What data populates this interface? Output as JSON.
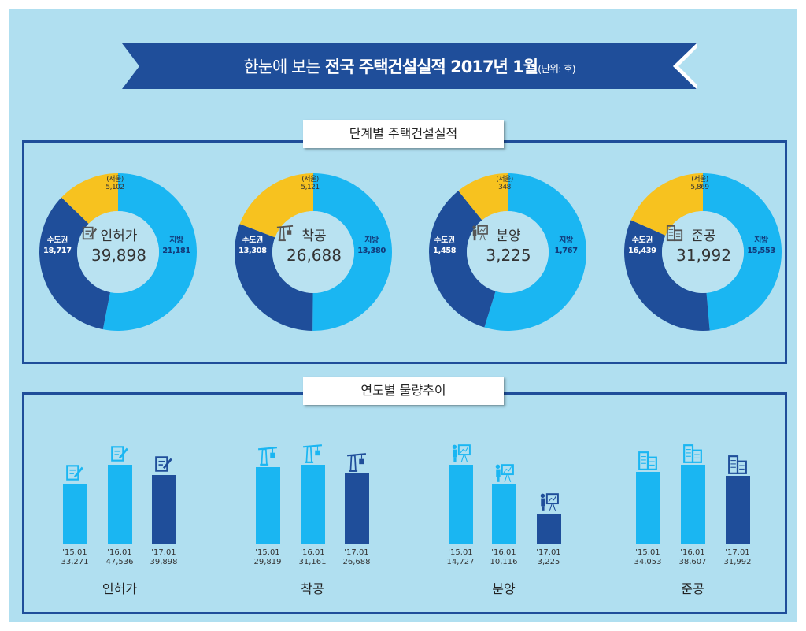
{
  "title": {
    "prefix": "한눈에 보는",
    "main": "전국 주택건설실적 2017년 1월",
    "unit": "(단위: 호)"
  },
  "panels": {
    "stage": "단계별 주택건설실적",
    "trend": "연도별 물량추이"
  },
  "colors": {
    "banner": "#1f4e9a",
    "local": "#1ab6f2",
    "metro": "#1f4e9a",
    "seoul": "#f7c21f",
    "bar_past": "#1ab6f2",
    "bar_current": "#1f4e9a"
  },
  "chart_data": [
    {
      "type": "pie",
      "variant": "donut",
      "labels": {
        "metro": "수도권",
        "local": "지방",
        "seoul": "(서울)"
      },
      "items": [
        {
          "name": "인허가",
          "icon": "document-pen-icon",
          "total": "39,898",
          "metro": 18717,
          "metro_label": "18,717",
          "local": 21181,
          "local_label": "21,181",
          "seoul": 5102,
          "seoul_label": "5,102"
        },
        {
          "name": "착공",
          "icon": "crane-icon",
          "total": "26,688",
          "metro": 13308,
          "metro_label": "13,308",
          "local": 13380,
          "local_label": "13,380",
          "seoul": 5121,
          "seoul_label": "5,121"
        },
        {
          "name": "분양",
          "icon": "presentation-icon",
          "total": "3,225",
          "metro": 1458,
          "metro_label": "1,458",
          "local": 1767,
          "local_label": "1,767",
          "seoul": 348,
          "seoul_label": "348"
        },
        {
          "name": "준공",
          "icon": "building-icon",
          "total": "31,992",
          "metro": 16439,
          "metro_label": "16,439",
          "local": 15553,
          "local_label": "15,553",
          "seoul": 5869,
          "seoul_label": "5,869"
        }
      ]
    },
    {
      "type": "bar",
      "groups": [
        {
          "name": "인허가",
          "icon": "document-pen-icon",
          "categories": [
            "'15.01",
            "'16.01",
            "'17.01"
          ],
          "values": [
            33271,
            47536,
            39898
          ],
          "labels": [
            "33,271",
            "47,536",
            "39,898"
          ]
        },
        {
          "name": "착공",
          "icon": "crane-icon",
          "categories": [
            "'15.01",
            "'16.01",
            "'17.01"
          ],
          "values": [
            29819,
            31161,
            26688
          ],
          "labels": [
            "29,819",
            "31,161",
            "26,688"
          ]
        },
        {
          "name": "분양",
          "icon": "presentation-icon",
          "categories": [
            "'15.01",
            "'16.01",
            "'17.01"
          ],
          "values": [
            14727,
            10116,
            3225
          ],
          "labels": [
            "14,727",
            "10,116",
            "3,225"
          ]
        },
        {
          "name": "준공",
          "icon": "building-icon",
          "categories": [
            "'15.01",
            "'16.01",
            "'17.01"
          ],
          "values": [
            34053,
            38607,
            31992
          ],
          "labels": [
            "34,053",
            "38,607",
            "31,992"
          ]
        }
      ]
    }
  ]
}
